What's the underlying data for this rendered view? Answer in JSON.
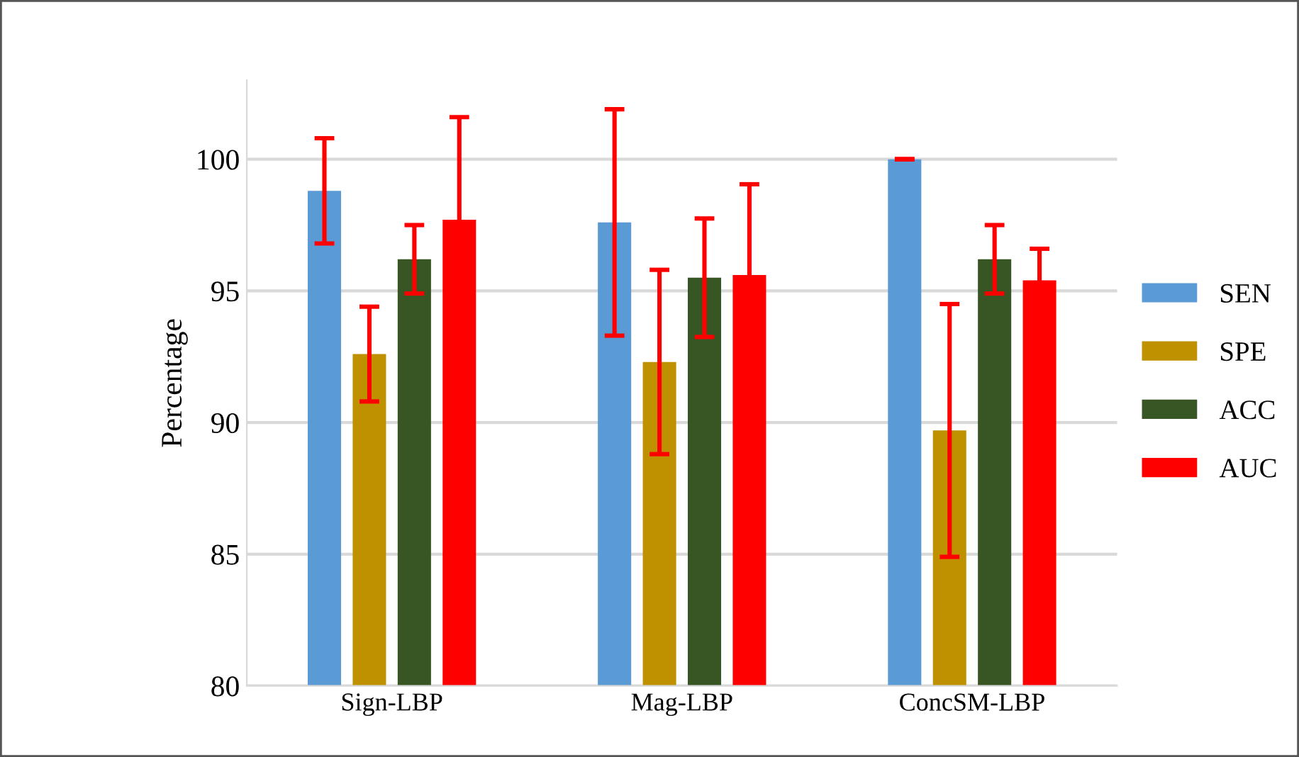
{
  "chart_data": {
    "type": "bar",
    "ylabel": "Percentage",
    "categories": [
      "Sign-LBP",
      "Mag-LBP",
      "ConcSM-LBP"
    ],
    "series": [
      {
        "name": "SEN",
        "color": "#5b9bd5",
        "values": [
          98.8,
          97.6,
          100
        ],
        "errors": [
          2.0,
          4.3,
          0
        ]
      },
      {
        "name": "SPE",
        "color": "#bf9000",
        "values": [
          92.6,
          92.3,
          89.7
        ],
        "errors": [
          1.8,
          3.5,
          4.8
        ]
      },
      {
        "name": "ACC",
        "color": "#375623",
        "values": [
          96.2,
          95.5,
          96.2
        ],
        "errors": [
          1.3,
          2.25,
          1.3
        ]
      },
      {
        "name": "AUC",
        "color": "#ff0000",
        "values": [
          97.7,
          95.6,
          95.4
        ],
        "errors": [
          3.9,
          3.45,
          1.2
        ]
      }
    ],
    "ylim": [
      80,
      103
    ],
    "yticks": [
      80,
      85,
      90,
      95,
      100
    ],
    "grid": "y",
    "legend": "right"
  }
}
